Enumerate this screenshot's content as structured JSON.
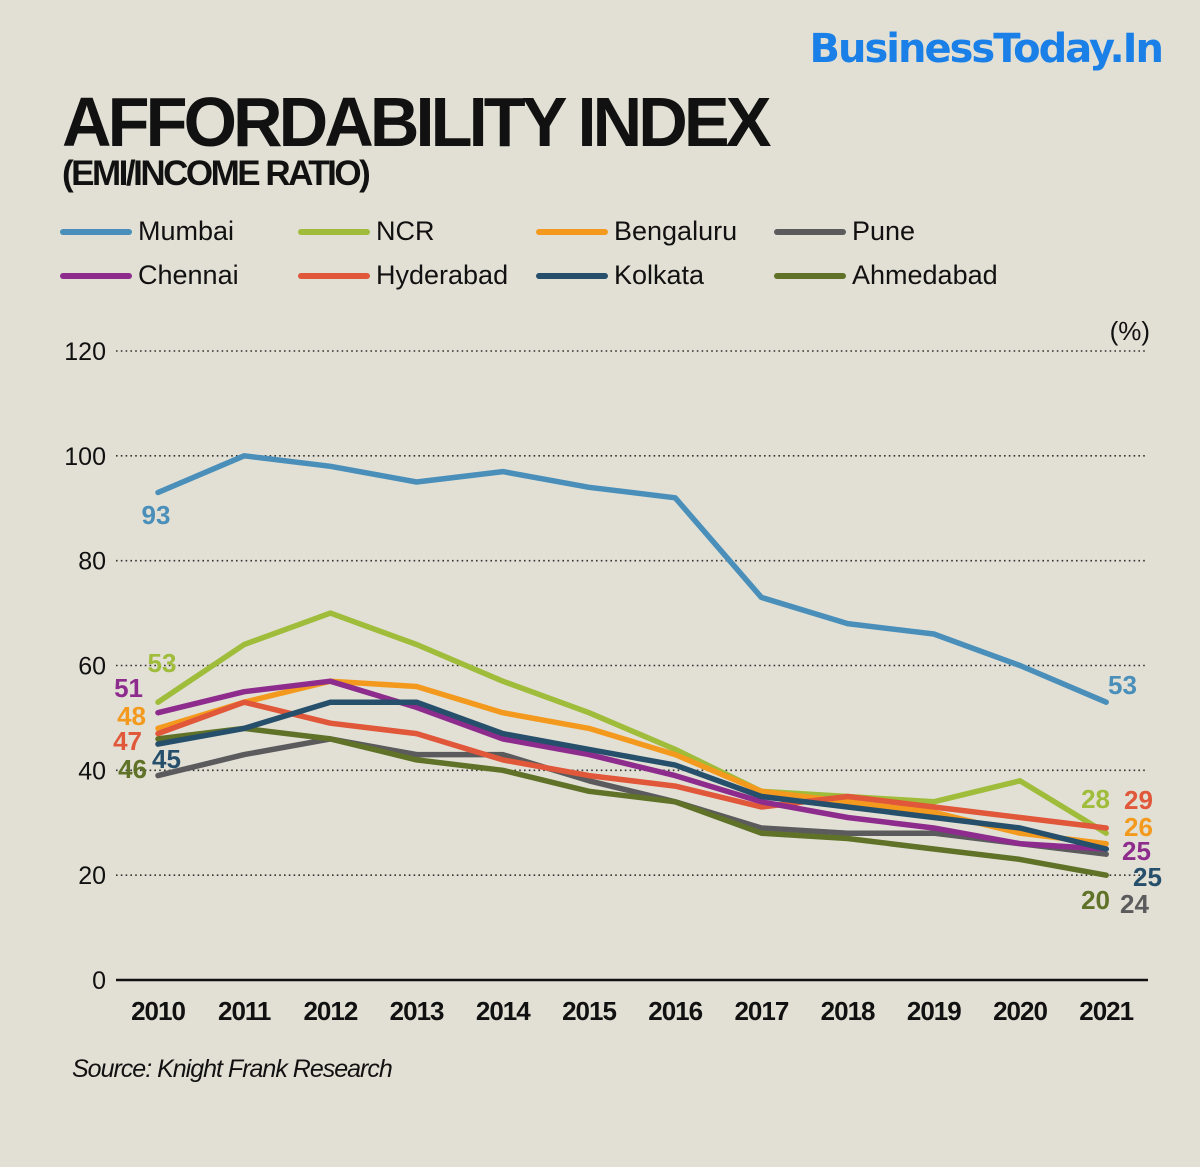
{
  "brand": "BusinessToday.In",
  "header": {
    "title": "AFFORDABILITY INDEX",
    "subtitle": "(EMI/INCOME RATIO)"
  },
  "source": "Source: Knight Frank Research",
  "chart_data": {
    "type": "line",
    "title": "AFFORDABILITY INDEX",
    "subtitle": "(EMI/INCOME RATIO)",
    "xlabel": "",
    "ylabel": "(%)",
    "ylim": [
      0,
      120
    ],
    "yticks": [
      0,
      20,
      40,
      60,
      80,
      100,
      120
    ],
    "grid": "horizontal dotted",
    "legend_position": "top-left",
    "x": [
      "2010",
      "2011",
      "2012",
      "2013",
      "2014",
      "2015",
      "2016",
      "2017",
      "2018",
      "2019",
      "2020",
      "2021"
    ],
    "series": [
      {
        "name": "Mumbai",
        "color": "#4a8fba",
        "values": [
          93,
          100,
          98,
          95,
          97,
          94,
          92,
          73,
          68,
          66,
          60,
          53
        ],
        "start_label": "93",
        "end_label": "53"
      },
      {
        "name": "NCR",
        "color": "#9fbc3a",
        "values": [
          53,
          64,
          70,
          64,
          57,
          51,
          44,
          36,
          35,
          34,
          38,
          28
        ],
        "start_label": "53",
        "end_label": "28"
      },
      {
        "name": "Bengaluru",
        "color": "#f39a1e",
        "values": [
          48,
          53,
          57,
          56,
          51,
          48,
          43,
          36,
          34,
          32,
          28,
          26
        ],
        "start_label": "48",
        "end_label": "26"
      },
      {
        "name": "Pune",
        "color": "#5b5b5d",
        "values": [
          39,
          43,
          46,
          43,
          43,
          38,
          34,
          29,
          28,
          28,
          26,
          24
        ],
        "start_label": "",
        "end_label": "24"
      },
      {
        "name": "Chennai",
        "color": "#8e2c8e",
        "values": [
          51,
          55,
          57,
          52,
          46,
          43,
          39,
          34,
          31,
          29,
          26,
          25
        ],
        "start_label": "51",
        "end_label": "25"
      },
      {
        "name": "Hyderabad",
        "color": "#e0573a",
        "values": [
          47,
          53,
          49,
          47,
          42,
          39,
          37,
          33,
          35,
          33,
          31,
          29
        ],
        "start_label": "47",
        "end_label": "29"
      },
      {
        "name": "Kolkata",
        "color": "#264f6b",
        "values": [
          45,
          48,
          53,
          53,
          47,
          44,
          41,
          35,
          33,
          31,
          29,
          25
        ],
        "start_label": "45",
        "end_label": "25"
      },
      {
        "name": "Ahmedabad",
        "color": "#5f7228",
        "values": [
          46,
          48,
          46,
          42,
          40,
          36,
          34,
          28,
          27,
          25,
          23,
          20
        ],
        "start_label": "46",
        "end_label": "20"
      }
    ]
  }
}
